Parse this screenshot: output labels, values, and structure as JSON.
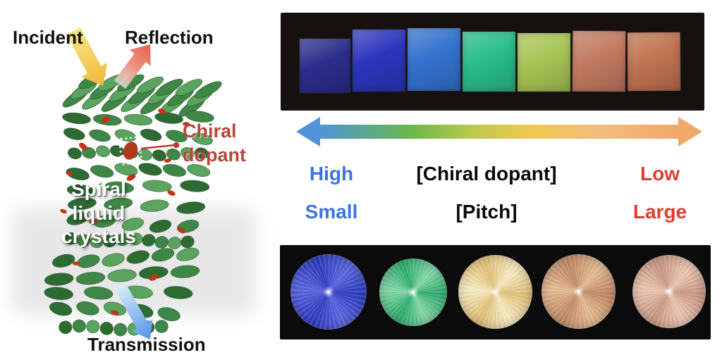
{
  "left_panel": {
    "incident_label": "Incident",
    "reflection_label": "Reflection",
    "chiral_dopant_label": "Chiral\ndopant",
    "spiral_label": "Spiral\nliquid\ncrystals",
    "transmission_label": "Transmission",
    "colors": {
      "incident_arrow": "#F2C83E",
      "reflection_arrow": "#E4604E",
      "transmission_arrow": "#4F94E8",
      "crystal_green_dark": "#2E6B33",
      "crystal_green_mid": "#3F8746",
      "crystal_green_light": "#5AA45F",
      "dopant_red": "#C23318",
      "chiral_text": "#B8473A",
      "spiral_text": "#FFFFFF",
      "label_text": "#111111"
    }
  },
  "top_photo": {
    "background": "#16100F",
    "squares": [
      {
        "name": "film-square-1",
        "color": "#2B2D8C"
      },
      {
        "name": "film-square-2",
        "color": "#2C35BD"
      },
      {
        "name": "film-square-3",
        "color": "#3372CE"
      },
      {
        "name": "film-square-4",
        "color": "#28BD8A"
      },
      {
        "name": "film-square-5",
        "color": "#A8C455"
      },
      {
        "name": "film-square-6",
        "color": "#C27A60"
      },
      {
        "name": "film-square-7",
        "color": "#C07351"
      }
    ]
  },
  "gradient_arrow": {
    "css": "linear-gradient(90deg,#4F94D8 0%,#6CB84B 26%,#B9C94E 42%,#EFC94F 58%,#F2BC80 78%,#F0A868 100%)",
    "left_color": "#4F94D8",
    "right_color": "#F0A868"
  },
  "annotations": {
    "row1": {
      "left": "High",
      "center": "[Chiral dopant]",
      "right": "Low"
    },
    "row2": {
      "left": "Small",
      "center": "[Pitch]",
      "right": "Large"
    },
    "left_color": "#3D74E3",
    "center_color": "#0A0A0A",
    "right_color": "#E23B2E"
  },
  "bottom_photo": {
    "background": "#0B0B0B",
    "discs": [
      {
        "name": "disc-1",
        "color": "#2F3CC0",
        "highlight": "#5A66E0"
      },
      {
        "name": "disc-2",
        "color": "#2FAE6E",
        "highlight": "#85D9AA"
      },
      {
        "name": "disc-3",
        "color": "#E2C179",
        "highlight": "#F8ECC4"
      },
      {
        "name": "disc-4",
        "color": "#C28A64",
        "highlight": "#E6BC94"
      },
      {
        "name": "disc-5",
        "color": "#C99984",
        "highlight": "#ECC7B2"
      }
    ]
  }
}
